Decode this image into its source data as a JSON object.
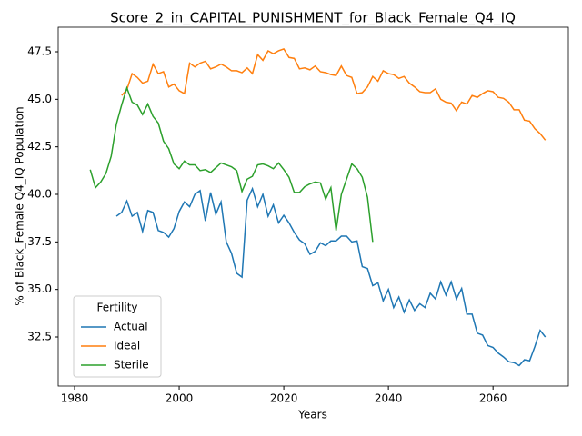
{
  "chart_data": {
    "type": "line",
    "title": "Score_2_in_CAPITAL_PUNISHMENT_for_Black_Female_Q4_IQ",
    "xlabel": "Years",
    "ylabel": "% of Black_Female Q4_IQ Population",
    "xlim": [
      1976.87,
      2074.4
    ],
    "ylim": [
      29.92,
      48.79
    ],
    "xticks": [
      1980,
      2000,
      2020,
      2040,
      2060
    ],
    "yticks": [
      32.5,
      {
        "value": 35,
        "label": "35.0"
      },
      37.5,
      {
        "value": 40,
        "label": "40.0"
      },
      42.5,
      {
        "value": 45,
        "label": "45.0"
      },
      47.5
    ],
    "legend": {
      "title": "Fertility",
      "loc": "lower left"
    },
    "series": [
      {
        "name": "Actual",
        "color": "#1f77b4",
        "x": [
          1988,
          1989,
          1990,
          1991,
          1992,
          1993,
          1994,
          1995,
          1996,
          1997,
          1998,
          1999,
          2000,
          2001,
          2002,
          2003,
          2004,
          2005,
          2006,
          2007,
          2008,
          2009,
          2010,
          2011,
          2012,
          2013,
          2014,
          2015,
          2016,
          2017,
          2018,
          2019,
          2020,
          2021,
          2022,
          2023,
          2024,
          2025,
          2026,
          2027,
          2028,
          2029,
          2030,
          2031,
          2032,
          2033,
          2034,
          2035,
          2036,
          2037,
          2038,
          2039,
          2040,
          2041,
          2042,
          2043,
          2044,
          2045,
          2046,
          2047,
          2048,
          2049,
          2050,
          2051,
          2052,
          2053,
          2054,
          2055,
          2056,
          2057,
          2058,
          2059,
          2060,
          2061,
          2062,
          2063,
          2064,
          2065,
          2066,
          2067,
          2068,
          2069,
          2070
        ],
        "values": [
          38.85,
          39.05,
          39.65,
          38.85,
          39.05,
          38.05,
          39.15,
          39.05,
          38.1,
          38.0,
          37.75,
          38.2,
          39.1,
          39.6,
          39.35,
          40.0,
          40.2,
          38.6,
          40.1,
          38.95,
          39.6,
          37.5,
          36.9,
          35.85,
          35.65,
          39.7,
          40.3,
          39.35,
          40.0,
          38.85,
          39.45,
          38.5,
          38.9,
          38.5,
          38.0,
          37.6,
          37.4,
          36.85,
          37.0,
          37.45,
          37.3,
          37.55,
          37.55,
          37.8,
          37.8,
          37.5,
          37.55,
          36.2,
          36.1,
          35.2,
          35.35,
          34.4,
          35.0,
          34.05,
          34.6,
          33.8,
          34.45,
          33.9,
          34.25,
          34.05,
          34.8,
          34.5,
          35.4,
          34.7,
          35.4,
          34.5,
          35.05,
          33.7,
          33.7,
          32.7,
          32.6,
          32.05,
          31.95,
          31.65,
          31.45,
          31.2,
          31.15,
          31.0,
          31.3,
          31.25,
          32.0,
          32.85,
          32.5
        ]
      },
      {
        "name": "Ideal",
        "color": "#ff7f0e",
        "x": [
          1989,
          1990,
          1991,
          1992,
          1993,
          1994,
          1995,
          1996,
          1997,
          1998,
          1999,
          2000,
          2001,
          2002,
          2003,
          2004,
          2005,
          2006,
          2007,
          2008,
          2009,
          2010,
          2011,
          2012,
          2013,
          2014,
          2015,
          2016,
          2017,
          2018,
          2019,
          2020,
          2021,
          2022,
          2023,
          2024,
          2025,
          2026,
          2027,
          2028,
          2029,
          2030,
          2031,
          2032,
          2033,
          2034,
          2035,
          2036,
          2037,
          2038,
          2039,
          2040,
          2041,
          2042,
          2043,
          2044,
          2045,
          2046,
          2047,
          2048,
          2049,
          2050,
          2051,
          2052,
          2053,
          2054,
          2055,
          2056,
          2057,
          2058,
          2059,
          2060,
          2061,
          2062,
          2063,
          2064,
          2065,
          2066,
          2067,
          2068,
          2069,
          2070
        ],
        "values": [
          45.2,
          45.5,
          46.35,
          46.15,
          45.85,
          45.95,
          46.85,
          46.35,
          46.45,
          45.65,
          45.8,
          45.45,
          45.3,
          46.9,
          46.7,
          46.9,
          47.0,
          46.6,
          46.7,
          46.85,
          46.7,
          46.5,
          46.5,
          46.4,
          46.65,
          46.35,
          47.35,
          47.05,
          47.55,
          47.4,
          47.55,
          47.65,
          47.2,
          47.15,
          46.6,
          46.65,
          46.55,
          46.75,
          46.45,
          46.4,
          46.3,
          46.25,
          46.75,
          46.25,
          46.15,
          45.3,
          45.35,
          45.65,
          46.2,
          45.95,
          46.5,
          46.35,
          46.3,
          46.1,
          46.2,
          45.85,
          45.65,
          45.4,
          45.35,
          45.35,
          45.55,
          45.0,
          44.85,
          44.8,
          44.4,
          44.85,
          44.75,
          45.2,
          45.1,
          45.3,
          45.45,
          45.4,
          45.1,
          45.05,
          44.85,
          44.45,
          44.45,
          43.9,
          43.85,
          43.45,
          43.2,
          42.85
        ]
      },
      {
        "name": "Sterile",
        "color": "#2ca02c",
        "x": [
          1983,
          1984,
          1985,
          1986,
          1987,
          1988,
          1989,
          1990,
          1991,
          1992,
          1993,
          1994,
          1995,
          1996,
          1997,
          1998,
          1999,
          2000,
          2001,
          2002,
          2003,
          2004,
          2005,
          2006,
          2007,
          2008,
          2009,
          2010,
          2011,
          2012,
          2013,
          2014,
          2015,
          2016,
          2017,
          2018,
          2019,
          2020,
          2021,
          2022,
          2023,
          2024,
          2025,
          2026,
          2027,
          2028,
          2029,
          2030,
          2031,
          2032,
          2033,
          2034,
          2035,
          2036,
          2037
        ],
        "values": [
          41.3,
          40.35,
          40.65,
          41.1,
          42.0,
          43.7,
          44.7,
          45.6,
          44.85,
          44.7,
          44.2,
          44.75,
          44.1,
          43.75,
          42.8,
          42.4,
          41.6,
          41.35,
          41.75,
          41.55,
          41.55,
          41.25,
          41.3,
          41.15,
          41.4,
          41.65,
          41.55,
          41.45,
          41.25,
          40.15,
          40.8,
          40.95,
          41.55,
          41.6,
          41.5,
          41.35,
          41.65,
          41.3,
          40.9,
          40.1,
          40.1,
          40.4,
          40.55,
          40.65,
          40.6,
          39.75,
          40.35,
          38.1,
          40.0,
          40.8,
          41.6,
          41.35,
          40.9,
          39.85,
          37.5
        ]
      }
    ]
  }
}
